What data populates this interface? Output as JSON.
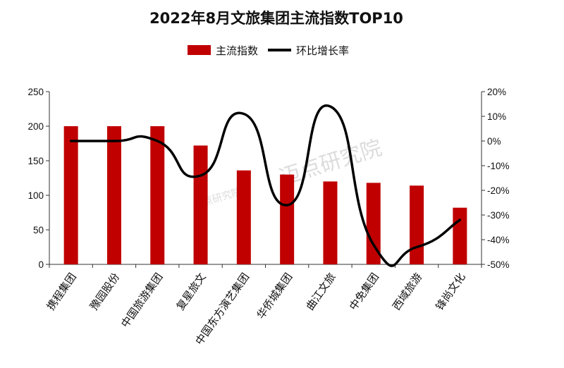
{
  "chart_data": {
    "type": "bar",
    "title": "2022年8月文旅集团主流指数TOP10",
    "categories": [
      "携程集团",
      "豫园股份",
      "中国旅游集团",
      "复星旅文",
      "中国东方演艺集团",
      "华侨城集团",
      "曲江文旅",
      "中免集团",
      "西域旅游",
      "锋尚文化"
    ],
    "series": [
      {
        "name": "主流指数",
        "type": "bar",
        "axis": "left",
        "color": "#c00000",
        "values": [
          200,
          200,
          200,
          172,
          136,
          130,
          120,
          118,
          114,
          82
        ]
      },
      {
        "name": "环比增长率",
        "type": "line",
        "axis": "right",
        "color": "#000000",
        "values": [
          0,
          0,
          0,
          -14,
          11,
          -26,
          14,
          -42,
          -43,
          -32
        ]
      }
    ],
    "y_left": {
      "range": [
        0,
        250
      ],
      "ticks": [
        "0",
        "50",
        "100",
        "150",
        "200",
        "250"
      ]
    },
    "y_right": {
      "range": [
        -50,
        20
      ],
      "ticks": [
        "-50%",
        "-40%",
        "-30%",
        "-20%",
        "-10%",
        "0%",
        "10%",
        "20%"
      ]
    },
    "legend_position": "top-center",
    "grid": false
  },
  "watermark": {
    "small": "迈点研究院",
    "large": "迈点研究院"
  }
}
